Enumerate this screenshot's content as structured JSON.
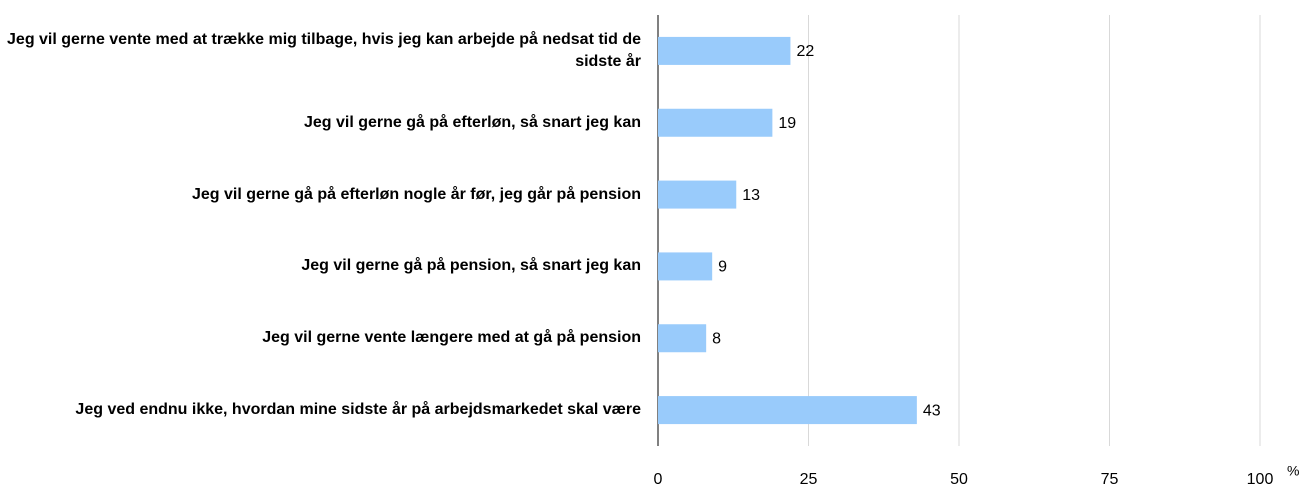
{
  "chart_data": {
    "type": "barh",
    "categories": [
      "Jeg vil gerne vente med at trække mig tilbage, hvis jeg kan arbejde på nedsat tid de sidste år",
      "Jeg vil gerne gå på efterløn, så snart jeg kan",
      "Jeg vil gerne gå på efterløn nogle år før, jeg går på pension",
      "Jeg vil gerne gå på pension, så snart jeg kan",
      "Jeg vil gerne vente længere med at gå på pension",
      "Jeg ved endnu ikke, hvordan mine sidste år på arbejdsmarkedet skal være"
    ],
    "values": [
      22,
      19,
      13,
      9,
      8,
      43
    ],
    "color": "#99cbfb",
    "xlim": [
      0,
      100
    ],
    "xticks": [
      0,
      25,
      50,
      75,
      100
    ],
    "xlabel": "%",
    "grid": true
  }
}
